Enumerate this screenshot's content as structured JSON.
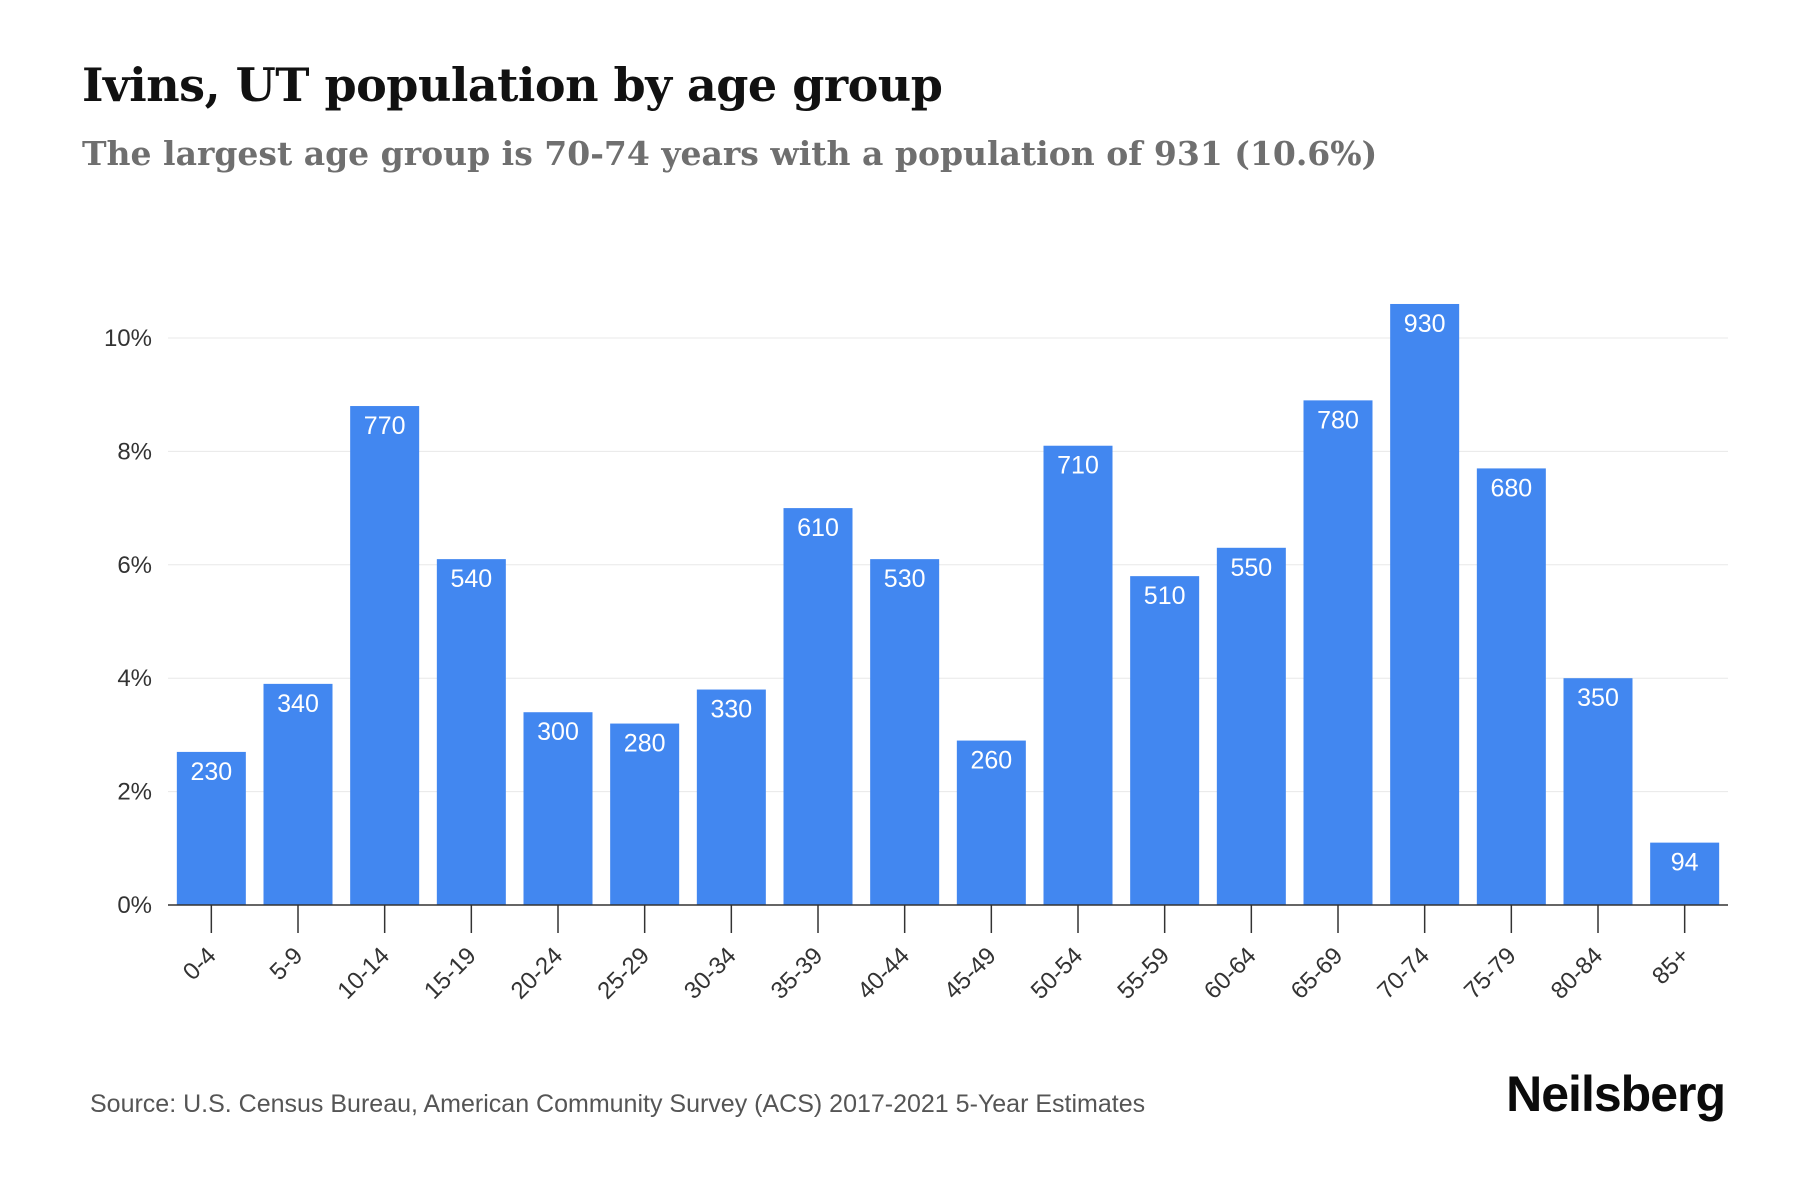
{
  "title": "Ivins, UT population by age group",
  "subtitle": "The largest age group is 70-74 years with a population of 931 (10.6%)",
  "source": "Source: U.S. Census Bureau, American Community Survey (ACS) 2017-2021 5-Year Estimates",
  "brand": "Neilsberg",
  "colors": {
    "bar": "#4287f0",
    "grid": "#e8e8e8",
    "axis": "#333333"
  },
  "chart_data": {
    "type": "bar",
    "title": "Ivins, UT population by age group",
    "subtitle": "The largest age group is 70-74 years with a population of 931 (10.6%)",
    "categories": [
      "0-4",
      "5-9",
      "10-14",
      "15-19",
      "20-24",
      "25-29",
      "30-34",
      "35-39",
      "40-44",
      "45-49",
      "50-54",
      "55-59",
      "60-64",
      "65-69",
      "70-74",
      "75-79",
      "80-84",
      "85+"
    ],
    "values_percent": [
      2.7,
      3.9,
      8.8,
      6.1,
      3.4,
      3.2,
      3.8,
      7.0,
      6.1,
      2.9,
      8.1,
      5.8,
      6.3,
      8.9,
      10.6,
      7.7,
      4.0,
      1.1
    ],
    "data_labels": [
      "230",
      "340",
      "770",
      "540",
      "300",
      "280",
      "330",
      "610",
      "530",
      "260",
      "710",
      "510",
      "550",
      "780",
      "930",
      "680",
      "350",
      "94"
    ],
    "y_ticks": [
      "0%",
      "2%",
      "4%",
      "6%",
      "8%",
      "10%"
    ],
    "y_tick_values": [
      0,
      2,
      4,
      6,
      8,
      10
    ],
    "ylim": [
      0,
      10.6
    ],
    "grid": true,
    "legend": "none"
  }
}
